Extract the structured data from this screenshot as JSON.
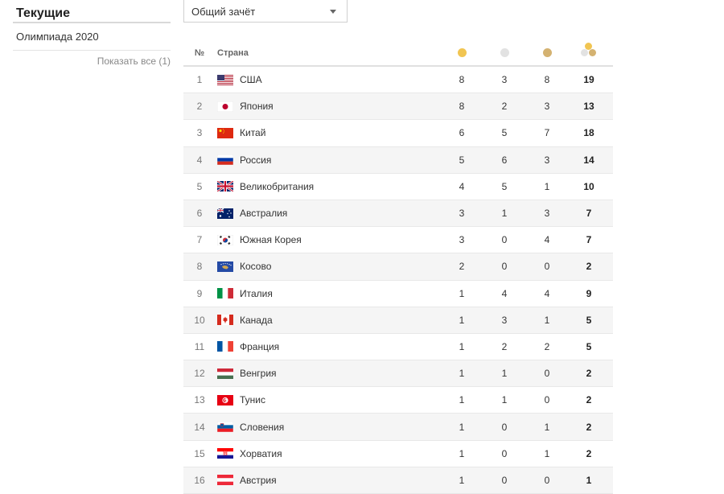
{
  "sidebar": {
    "title": "Текущие",
    "items": [
      {
        "label": "Олимпиада 2020"
      }
    ],
    "show_all": "Показать все (1)"
  },
  "dropdown": {
    "selected": "Общий зачёт"
  },
  "table": {
    "headers": {
      "num": "№",
      "country": "Страна"
    },
    "medal_icons": [
      "gold-medal-icon",
      "silver-medal-icon",
      "bronze-medal-icon",
      "all-medals-icon"
    ],
    "colors": {
      "gold": "#f1c552",
      "silver": "#e2e2e2",
      "bronze": "#d4b271"
    },
    "rows": [
      {
        "rank": "1",
        "country": "США",
        "flag": "us-flag-icon",
        "gold": "8",
        "silver": "3",
        "bronze": "8",
        "total": "19"
      },
      {
        "rank": "2",
        "country": "Япония",
        "flag": "japan-flag-icon",
        "gold": "8",
        "silver": "2",
        "bronze": "3",
        "total": "13"
      },
      {
        "rank": "3",
        "country": "Китай",
        "flag": "china-flag-icon",
        "gold": "6",
        "silver": "5",
        "bronze": "7",
        "total": "18"
      },
      {
        "rank": "4",
        "country": "Россия",
        "flag": "russia-flag-icon",
        "gold": "5",
        "silver": "6",
        "bronze": "3",
        "total": "14"
      },
      {
        "rank": "5",
        "country": "Великобритания",
        "flag": "uk-flag-icon",
        "gold": "4",
        "silver": "5",
        "bronze": "1",
        "total": "10"
      },
      {
        "rank": "6",
        "country": "Австралия",
        "flag": "australia-flag-icon",
        "gold": "3",
        "silver": "1",
        "bronze": "3",
        "total": "7"
      },
      {
        "rank": "7",
        "country": "Южная Корея",
        "flag": "south-korea-flag-icon",
        "gold": "3",
        "silver": "0",
        "bronze": "4",
        "total": "7"
      },
      {
        "rank": "8",
        "country": "Косово",
        "flag": "kosovo-flag-icon",
        "gold": "2",
        "silver": "0",
        "bronze": "0",
        "total": "2"
      },
      {
        "rank": "9",
        "country": "Италия",
        "flag": "italy-flag-icon",
        "gold": "1",
        "silver": "4",
        "bronze": "4",
        "total": "9"
      },
      {
        "rank": "10",
        "country": "Канада",
        "flag": "canada-flag-icon",
        "gold": "1",
        "silver": "3",
        "bronze": "1",
        "total": "5"
      },
      {
        "rank": "11",
        "country": "Франция",
        "flag": "france-flag-icon",
        "gold": "1",
        "silver": "2",
        "bronze": "2",
        "total": "5"
      },
      {
        "rank": "12",
        "country": "Венгрия",
        "flag": "hungary-flag-icon",
        "gold": "1",
        "silver": "1",
        "bronze": "0",
        "total": "2"
      },
      {
        "rank": "13",
        "country": "Тунис",
        "flag": "tunisia-flag-icon",
        "gold": "1",
        "silver": "1",
        "bronze": "0",
        "total": "2"
      },
      {
        "rank": "14",
        "country": "Словения",
        "flag": "slovenia-flag-icon",
        "gold": "1",
        "silver": "0",
        "bronze": "1",
        "total": "2"
      },
      {
        "rank": "15",
        "country": "Хорватия",
        "flag": "croatia-flag-icon",
        "gold": "1",
        "silver": "0",
        "bronze": "1",
        "total": "2"
      },
      {
        "rank": "16",
        "country": "Австрия",
        "flag": "austria-flag-icon",
        "gold": "1",
        "silver": "0",
        "bronze": "0",
        "total": "1"
      }
    ]
  }
}
